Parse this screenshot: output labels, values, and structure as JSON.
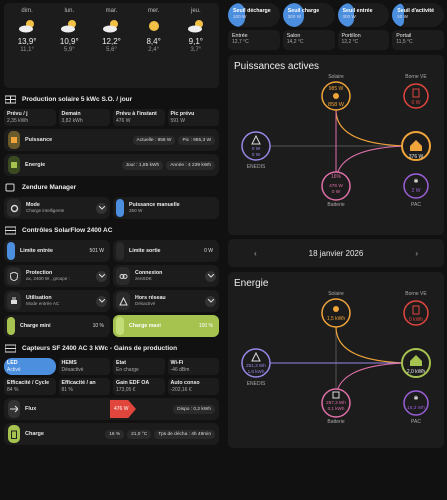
{
  "weather": [
    {
      "day": "dim.",
      "hi": "13,9°",
      "lo": "11,1°",
      "icon": "partly-cloudy-icon"
    },
    {
      "day": "lun.",
      "hi": "10,9°",
      "lo": "5,9°",
      "icon": "partly-cloudy-icon"
    },
    {
      "day": "mar.",
      "hi": "12,2°",
      "lo": "5,6°",
      "icon": "partly-cloudy-icon"
    },
    {
      "day": "mer.",
      "hi": "8,4°",
      "lo": "2,4°",
      "icon": "sunny-icon"
    },
    {
      "day": "jeu.",
      "hi": "9,1°",
      "lo": "3,7°",
      "icon": "partly-cloudy-icon"
    }
  ],
  "solar": {
    "title": "Production solaire 5 kWc S.O. / jour",
    "cells": [
      {
        "label": "Prévu / j",
        "value": "2,35 kWh"
      },
      {
        "label": "Demain",
        "value": "3,82 kWh"
      },
      {
        "label": "Prévu à l'instant",
        "value": "476 W"
      },
      {
        "label": "Pic prévu",
        "value": "591 W"
      }
    ],
    "puissance": {
      "label": "Puissance",
      "chip1": "Actuelle : 858 W",
      "chip2": "Pic : 985,3 W"
    },
    "energie": {
      "label": "Energie",
      "chip1": "Jour : 1,85 kWh",
      "chip2": "Année : 4 239 kWh"
    }
  },
  "zendure": {
    "title": "Zendure Manager",
    "mode_label": "Mode",
    "mode_value": "Charge intelligente",
    "manual_label": "Puissance manuelle",
    "manual_value": "250 W"
  },
  "solarflow": {
    "title": "Contrôles SolarFlow 2400 AC",
    "limite_entree": {
      "label": "Limite entrée",
      "value": "501 W"
    },
    "limite_sortie": {
      "label": "Limite sortie",
      "value": "0 W"
    },
    "protection": {
      "label": "Protection",
      "value": "ax, 2400 W , groupe :"
    },
    "connexion": {
      "label": "Connexion",
      "value": "zenSDK"
    },
    "utilisation": {
      "label": "Utilisation",
      "value": "Mode entrée AC"
    },
    "hors_reseau": {
      "label": "Hors réseau",
      "value": "Désactivé"
    },
    "charge_mini": {
      "label": "Charge mini",
      "value": "10 %"
    },
    "charge_maxi": {
      "label": "Charge maxi",
      "value": "100 %"
    }
  },
  "capteurs": {
    "title": "Capteurs SF 2400 AC 3 kWc - Gains de production",
    "grid": [
      {
        "label": "LED",
        "value": "Activé"
      },
      {
        "label": "HEMS",
        "value": "Désactivé"
      },
      {
        "label": "Etat",
        "value": "En charge"
      },
      {
        "label": "Wi-Fi",
        "value": "-46 dBm"
      },
      {
        "label": "Efficacité / Cycle",
        "value": "84 %"
      },
      {
        "label": "Efficacité / an",
        "value": "81 %"
      },
      {
        "label": "Gain EDF OA",
        "value": "173,05 €"
      },
      {
        "label": "Auto conso",
        "value": "-202,16 €"
      }
    ],
    "flux": {
      "label": "Flux",
      "value": "476 W",
      "chip": "Dispo : 0,2 kWh"
    },
    "charge": {
      "label": "Charge",
      "chip1": "16 %",
      "chip2": "21,0 °C",
      "chip3": "Tps de décha : 4h 49min"
    }
  },
  "thresholds": [
    {
      "label": "Seuil décharge",
      "value": "100 W",
      "fill": 0.32
    },
    {
      "label": "Seuil charge",
      "value": "300 W",
      "fill": 0.42
    },
    {
      "label": "Seuil entrée",
      "value": "300 W",
      "fill": 0.32
    },
    {
      "label": "Seuil d'activité",
      "value": "50 W",
      "fill": 0.22
    }
  ],
  "rooms": [
    {
      "label": "Entrée",
      "value": "12,7 °C"
    },
    {
      "label": "Salon",
      "value": "14,2 °C"
    },
    {
      "label": "Portillon",
      "value": "12,2 °C"
    },
    {
      "label": "Portail",
      "value": "11,5 °C"
    }
  ],
  "power": {
    "title": "Puissances actives",
    "solaire": {
      "label": "Solaire",
      "top": "985 W",
      "value": "858 W"
    },
    "borne": {
      "label": "Borne VE",
      "value": "0 W"
    },
    "enedis": {
      "label": "ENEDIS",
      "in": "0 W",
      "out": "0 W"
    },
    "house": {
      "value": "376 W"
    },
    "batterie": {
      "label": "Batterie",
      "pct": "16%",
      "a": "476 W",
      "b": "0 W"
    },
    "pac": {
      "label": "PAC",
      "value": "2 W"
    }
  },
  "date": {
    "value": "18 janvier 2026"
  },
  "energy": {
    "title": "Energie",
    "solaire": {
      "label": "Solaire",
      "value": "1,5 kWh"
    },
    "borne": {
      "label": "Borne VE",
      "value": "0 kWh"
    },
    "enedis": {
      "label": "ENEDIS",
      "in": "251,3 Wh",
      "out": "1,8 kWh"
    },
    "house": {
      "value": "2,0 kWh"
    },
    "batterie": {
      "label": "Batterie",
      "a": "257,3 Wh",
      "b": "0,1 kWh"
    },
    "pac": {
      "label": "PAC",
      "value": "18,3 Wh"
    }
  },
  "colors": {
    "accent": "#4b8fde",
    "solar": "#f0a43a",
    "grid": "#9a87e8",
    "battery": "#e06fa8",
    "green": "#a6c24f",
    "red": "#e0463c"
  }
}
